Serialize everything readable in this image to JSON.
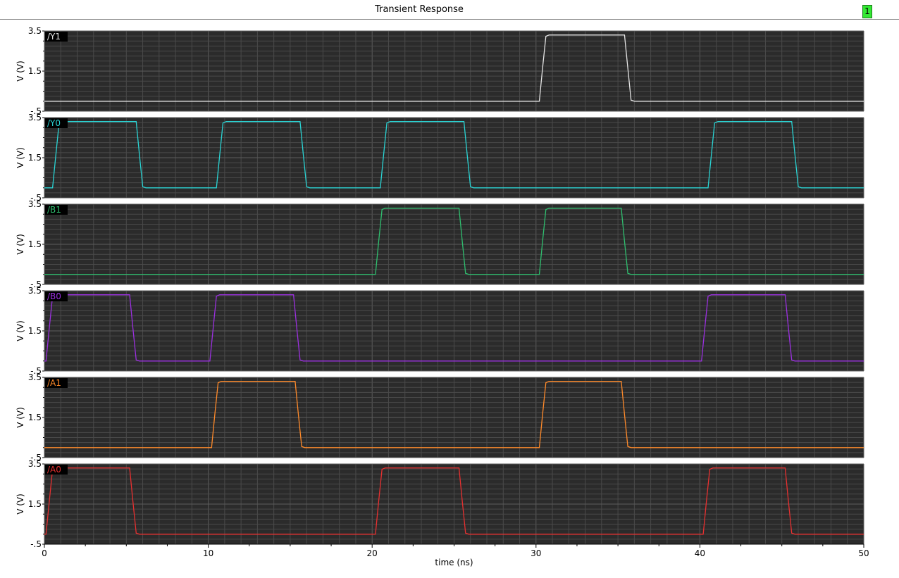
{
  "window": {
    "title": "Transient Response",
    "page_badge": "1"
  },
  "colors": {
    "panel_background": "#2b2b2b",
    "grid": "#4a4a4a"
  },
  "chart_data": {
    "type": "line",
    "title": "Transient Response",
    "xlabel": "time (ns)",
    "ylabel": "V (V)",
    "xlim": [
      0,
      50
    ],
    "ylim": [
      -0.5,
      3.5
    ],
    "x_ticks": [
      0,
      10,
      20,
      30,
      40,
      50
    ],
    "y_ticks": [
      "3.5",
      "1.5",
      "-.5"
    ],
    "grid": true,
    "rise_fall_ns": 0.4,
    "low_level": 0.0,
    "high_level": 3.3,
    "series": [
      {
        "name": "/Y1",
        "color": "#e6e6e6",
        "high_intervals": [
          [
            30.2,
            35.4
          ]
        ]
      },
      {
        "name": "/Y0",
        "color": "#2ad4d4",
        "high_intervals": [
          [
            0.5,
            5.6
          ],
          [
            10.5,
            15.6
          ],
          [
            20.5,
            25.6
          ],
          [
            40.5,
            45.6
          ]
        ]
      },
      {
        "name": "/B1",
        "color": "#2fbf6f",
        "high_intervals": [
          [
            20.2,
            25.3
          ],
          [
            30.2,
            35.2
          ]
        ]
      },
      {
        "name": "/B0",
        "color": "#9b30e0",
        "high_intervals": [
          [
            0.1,
            5.2
          ],
          [
            10.1,
            15.2
          ],
          [
            40.1,
            45.2
          ]
        ]
      },
      {
        "name": "/A1",
        "color": "#ff8a2a",
        "high_intervals": [
          [
            10.2,
            15.3
          ],
          [
            30.2,
            35.2
          ]
        ]
      },
      {
        "name": "/A0",
        "color": "#e83030",
        "high_intervals": [
          [
            0.1,
            5.2
          ],
          [
            20.2,
            25.3
          ],
          [
            40.2,
            45.2
          ]
        ]
      }
    ]
  }
}
